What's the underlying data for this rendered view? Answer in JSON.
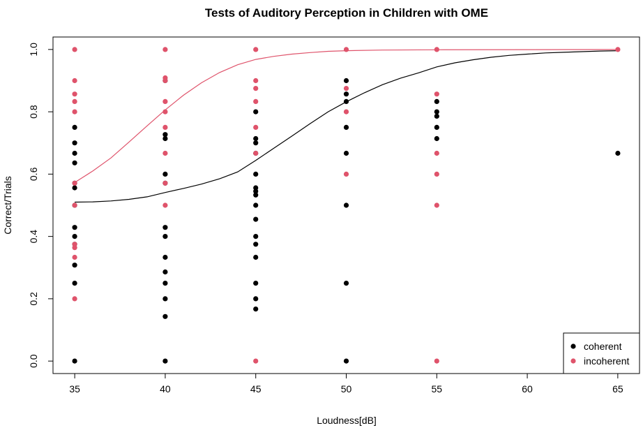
{
  "chart_data": {
    "type": "scatter",
    "title": "Tests of Auditory Perception in Children with OME",
    "xlabel": "Loudness[dB]",
    "ylabel": "Correct/Trials",
    "xlim": [
      33.8,
      66.2
    ],
    "ylim": [
      -0.04,
      1.04
    ],
    "x_ticks": [
      35,
      40,
      45,
      50,
      55,
      60,
      65
    ],
    "y_ticks": [
      0.0,
      0.2,
      0.4,
      0.6,
      0.8,
      1.0
    ],
    "y_tick_labels": [
      "0.0",
      "0.2",
      "0.4",
      "0.6",
      "0.8",
      "1.0"
    ],
    "grid": false,
    "legend": {
      "position": "bottom-right",
      "entries": [
        "coherent",
        "incoherent"
      ]
    },
    "series": [
      {
        "name": "coherent",
        "color": "#000000",
        "points": [
          [
            35,
            0.75
          ],
          [
            35,
            0.7
          ],
          [
            35,
            0.667
          ],
          [
            35,
            0.636
          ],
          [
            35,
            0.571
          ],
          [
            35,
            0.556
          ],
          [
            35,
            0.5
          ],
          [
            35,
            0.429
          ],
          [
            35,
            0.4
          ],
          [
            35,
            0.375
          ],
          [
            35,
            0.308
          ],
          [
            35,
            0.25
          ],
          [
            35,
            0.0
          ],
          [
            40,
            0.9
          ],
          [
            40,
            0.727
          ],
          [
            40,
            0.714
          ],
          [
            40,
            0.6
          ],
          [
            40,
            0.571
          ],
          [
            40,
            0.429
          ],
          [
            40,
            0.4
          ],
          [
            40,
            0.333
          ],
          [
            40,
            0.286
          ],
          [
            40,
            0.25
          ],
          [
            40,
            0.2
          ],
          [
            40,
            0.143
          ],
          [
            40,
            0.0
          ],
          [
            45,
            0.8
          ],
          [
            45,
            0.714
          ],
          [
            45,
            0.7
          ],
          [
            45,
            0.667
          ],
          [
            45,
            0.6
          ],
          [
            45,
            0.556
          ],
          [
            45,
            0.545
          ],
          [
            45,
            0.533
          ],
          [
            45,
            0.5
          ],
          [
            45,
            0.455
          ],
          [
            45,
            0.4
          ],
          [
            45,
            0.375
          ],
          [
            45,
            0.333
          ],
          [
            45,
            0.25
          ],
          [
            45,
            0.2
          ],
          [
            45,
            0.167
          ],
          [
            50,
            0.9
          ],
          [
            50,
            0.857
          ],
          [
            50,
            0.833
          ],
          [
            50,
            0.75
          ],
          [
            50,
            0.667
          ],
          [
            50,
            0.5
          ],
          [
            50,
            0.25
          ],
          [
            50,
            0.0
          ],
          [
            55,
            0.833
          ],
          [
            55,
            0.8
          ],
          [
            55,
            0.786
          ],
          [
            55,
            0.75
          ],
          [
            55,
            0.714
          ],
          [
            65,
            0.667
          ]
        ],
        "curve": [
          [
            35,
            0.51
          ],
          [
            36,
            0.511
          ],
          [
            37,
            0.514
          ],
          [
            38,
            0.519
          ],
          [
            39,
            0.527
          ],
          [
            40,
            0.541
          ],
          [
            41,
            0.554
          ],
          [
            42,
            0.568
          ],
          [
            43,
            0.585
          ],
          [
            44,
            0.607
          ],
          [
            45,
            0.644
          ],
          [
            46,
            0.683
          ],
          [
            47,
            0.722
          ],
          [
            48,
            0.762
          ],
          [
            49,
            0.8
          ],
          [
            50,
            0.832
          ],
          [
            51,
            0.861
          ],
          [
            52,
            0.887
          ],
          [
            53,
            0.908
          ],
          [
            54,
            0.925
          ],
          [
            55,
            0.944
          ],
          [
            56,
            0.957
          ],
          [
            57,
            0.967
          ],
          [
            58,
            0.975
          ],
          [
            59,
            0.981
          ],
          [
            60,
            0.985
          ],
          [
            61,
            0.989
          ],
          [
            62,
            0.991
          ],
          [
            63,
            0.993
          ],
          [
            64,
            0.995
          ],
          [
            65,
            0.996
          ]
        ]
      },
      {
        "name": "incoherent",
        "color": "#DF536B",
        "points": [
          [
            35,
            1.0
          ],
          [
            35,
            0.9
          ],
          [
            35,
            0.857
          ],
          [
            35,
            0.833
          ],
          [
            35,
            0.8
          ],
          [
            35,
            0.571
          ],
          [
            35,
            0.5
          ],
          [
            35,
            0.375
          ],
          [
            35,
            0.364
          ],
          [
            35,
            0.333
          ],
          [
            35,
            0.2
          ],
          [
            40,
            1.0
          ],
          [
            40,
            0.909
          ],
          [
            40,
            0.9
          ],
          [
            40,
            0.833
          ],
          [
            40,
            0.8
          ],
          [
            40,
            0.75
          ],
          [
            40,
            0.667
          ],
          [
            40,
            0.571
          ],
          [
            40,
            0.5
          ],
          [
            45,
            1.0
          ],
          [
            45,
            0.9
          ],
          [
            45,
            0.875
          ],
          [
            45,
            0.833
          ],
          [
            45,
            0.75
          ],
          [
            45,
            0.667
          ],
          [
            45,
            0.0
          ],
          [
            50,
            1.0
          ],
          [
            50,
            0.875
          ],
          [
            50,
            0.8
          ],
          [
            50,
            0.6
          ],
          [
            55,
            1.0
          ],
          [
            55,
            0.857
          ],
          [
            55,
            0.667
          ],
          [
            55,
            0.6
          ],
          [
            55,
            0.5
          ],
          [
            55,
            0.0
          ],
          [
            65,
            1.0
          ]
        ],
        "curve": [
          [
            35,
            0.573
          ],
          [
            36,
            0.61
          ],
          [
            37,
            0.652
          ],
          [
            38,
            0.703
          ],
          [
            39,
            0.755
          ],
          [
            40,
            0.806
          ],
          [
            41,
            0.853
          ],
          [
            42,
            0.893
          ],
          [
            43,
            0.926
          ],
          [
            44,
            0.951
          ],
          [
            45,
            0.968
          ],
          [
            46,
            0.978
          ],
          [
            47,
            0.985
          ],
          [
            48,
            0.99
          ],
          [
            49,
            0.994
          ],
          [
            50,
            0.996
          ],
          [
            52,
            0.998
          ],
          [
            55,
            0.999
          ],
          [
            60,
            0.9995
          ],
          [
            65,
            1.0
          ]
        ]
      }
    ]
  }
}
